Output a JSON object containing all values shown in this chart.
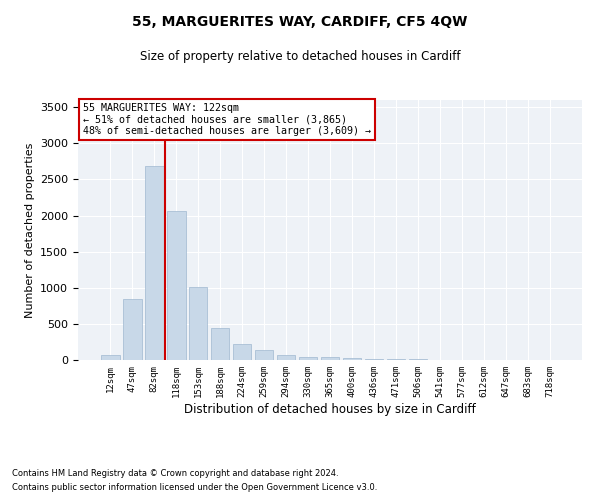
{
  "title": "55, MARGUERITES WAY, CARDIFF, CF5 4QW",
  "subtitle": "Size of property relative to detached houses in Cardiff",
  "xlabel": "Distribution of detached houses by size in Cardiff",
  "ylabel": "Number of detached properties",
  "categories": [
    "12sqm",
    "47sqm",
    "82sqm",
    "118sqm",
    "153sqm",
    "188sqm",
    "224sqm",
    "259sqm",
    "294sqm",
    "330sqm",
    "365sqm",
    "400sqm",
    "436sqm",
    "471sqm",
    "506sqm",
    "541sqm",
    "577sqm",
    "612sqm",
    "647sqm",
    "683sqm",
    "718sqm"
  ],
  "values": [
    75,
    840,
    2690,
    2060,
    1010,
    450,
    220,
    135,
    70,
    45,
    35,
    25,
    15,
    10,
    8,
    5,
    4,
    3,
    2,
    2,
    1
  ],
  "bar_color": "#c8d8e8",
  "bar_edge_color": "#a0b8d0",
  "vline_x": 2.5,
  "vline_color": "#cc0000",
  "annotation_text": "55 MARGUERITES WAY: 122sqm\n← 51% of detached houses are smaller (3,865)\n48% of semi-detached houses are larger (3,609) →",
  "annotation_box_color": "#ffffff",
  "annotation_box_edge": "#cc0000",
  "ylim": [
    0,
    3600
  ],
  "yticks": [
    0,
    500,
    1000,
    1500,
    2000,
    2500,
    3000,
    3500
  ],
  "footnote1": "Contains HM Land Registry data © Crown copyright and database right 2024.",
  "footnote2": "Contains public sector information licensed under the Open Government Licence v3.0.",
  "bg_color": "#eef2f7"
}
